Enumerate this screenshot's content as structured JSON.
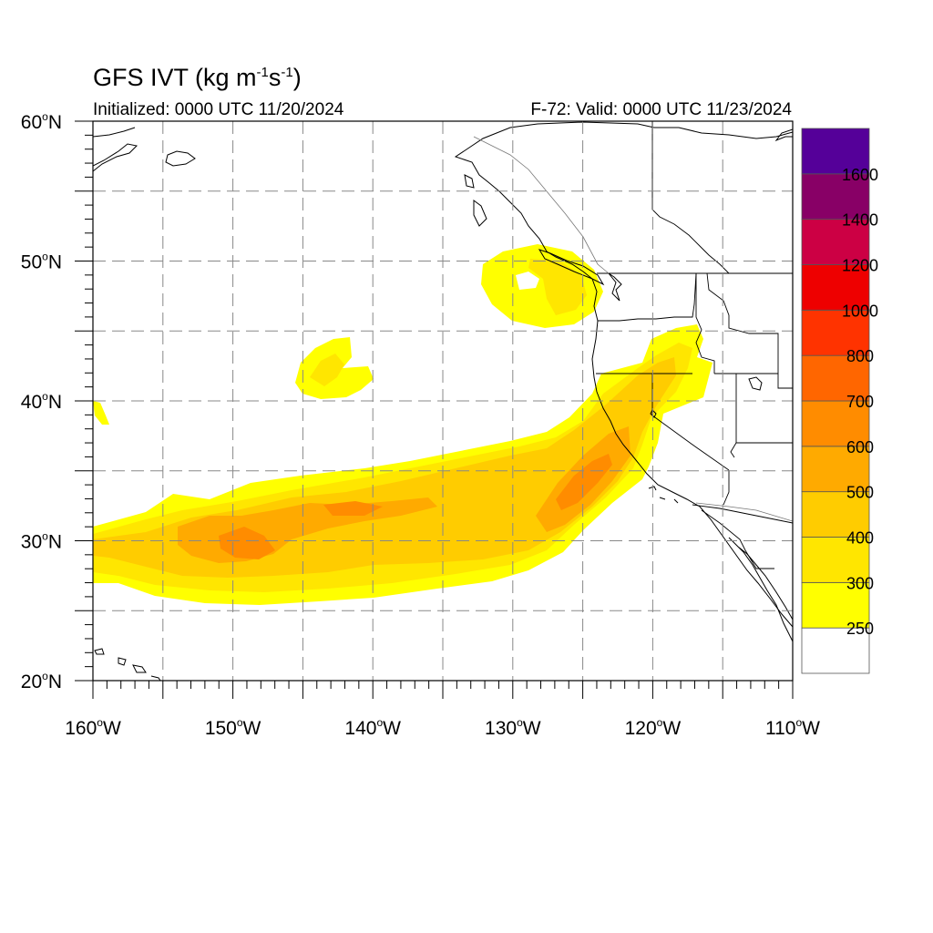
{
  "header": {
    "title_prefix": "GFS IVT (kg m",
    "title_sup1": "-1",
    "title_mid": "s",
    "title_sup2": "-1",
    "title_suffix": ")",
    "initialized": "Initialized: 0000 UTC 11/20/2024",
    "valid": "F-72: Valid: 0000 UTC 11/23/2024"
  },
  "map": {
    "lon_range": [
      -160,
      -110
    ],
    "lat_range": [
      20,
      60
    ],
    "lon_ticks": [
      {
        "value": -160,
        "num": "160",
        "hemi": "W"
      },
      {
        "value": -150,
        "num": "150",
        "hemi": "W"
      },
      {
        "value": -140,
        "num": "140",
        "hemi": "W"
      },
      {
        "value": -130,
        "num": "130",
        "hemi": "W"
      },
      {
        "value": -120,
        "num": "120",
        "hemi": "W"
      },
      {
        "value": -110,
        "num": "110",
        "hemi": "W"
      }
    ],
    "lat_ticks": [
      {
        "value": 20,
        "num": "20",
        "hemi": "N"
      },
      {
        "value": 30,
        "num": "30",
        "hemi": "N"
      },
      {
        "value": 40,
        "num": "40",
        "hemi": "N"
      },
      {
        "value": 50,
        "num": "50",
        "hemi": "N"
      },
      {
        "value": 60,
        "num": "60",
        "hemi": "N"
      }
    ],
    "grid_lon_step": 5,
    "grid_lat_step": 5,
    "grid": "dashed"
  },
  "colorbar": {
    "levels": [
      {
        "label": "",
        "color": "#ffffff"
      },
      {
        "label": "250",
        "color": "#ffff00"
      },
      {
        "label": "300",
        "color": "#ffe600"
      },
      {
        "label": "400",
        "color": "#ffcc00"
      },
      {
        "label": "500",
        "color": "#ffaa00"
      },
      {
        "label": "600",
        "color": "#ff8c00"
      },
      {
        "label": "700",
        "color": "#ff6600"
      },
      {
        "label": "800",
        "color": "#ff3300"
      },
      {
        "label": "1000",
        "color": "#ee0000"
      },
      {
        "label": "1200",
        "color": "#cc0044"
      },
      {
        "label": "1400",
        "color": "#880066"
      },
      {
        "label": "1600",
        "color": "#550099"
      }
    ]
  }
}
